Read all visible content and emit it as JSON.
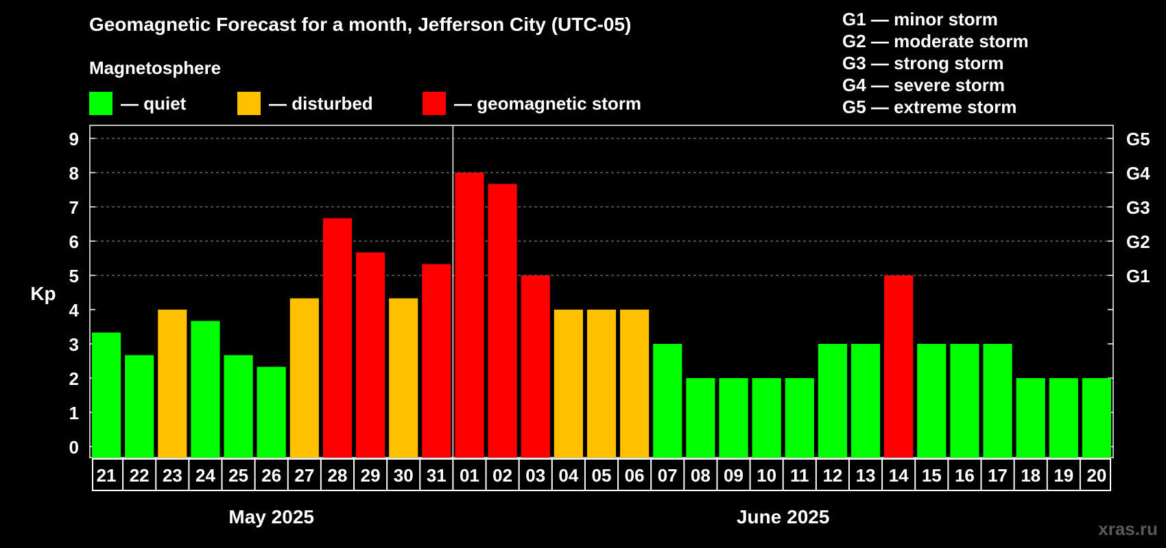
{
  "header": {
    "title": "Geomagnetic Forecast for a month, Jefferson City (UTC-05)",
    "magnetosphere_heading": "Magnetosphere"
  },
  "legend": [
    {
      "label": "— quiet",
      "color": "#00ff00"
    },
    {
      "label": "— disturbed",
      "color": "#ffc000"
    },
    {
      "label": "— geomagnetic storm",
      "color": "#ff0000"
    }
  ],
  "storm_scale": [
    "G1 — minor storm",
    "G2 — moderate storm",
    "G3 — strong storm",
    "G4 — severe storm",
    "G5 — extreme storm"
  ],
  "watermark": "xras.ru",
  "chart_data": {
    "type": "bar",
    "ylabel": "Kp",
    "ylim": [
      0,
      9
    ],
    "yticks": [
      "0",
      "1",
      "2",
      "3",
      "4",
      "5",
      "6",
      "7",
      "8",
      "9"
    ],
    "right_axis_labels": [
      {
        "value": 5,
        "label": "G1"
      },
      {
        "value": 6,
        "label": "G2"
      },
      {
        "value": 7,
        "label": "G3"
      },
      {
        "value": 8,
        "label": "G4"
      },
      {
        "value": 9,
        "label": "G5"
      }
    ],
    "grid": "dashed horizontal at Kp 5, 6, 7, 8, 9",
    "categories": [
      "21",
      "22",
      "23",
      "24",
      "25",
      "26",
      "27",
      "28",
      "29",
      "30",
      "31",
      "01",
      "02",
      "03",
      "04",
      "05",
      "06",
      "07",
      "08",
      "09",
      "10",
      "11",
      "12",
      "13",
      "14",
      "15",
      "16",
      "17",
      "18",
      "19",
      "20"
    ],
    "values": [
      3.33,
      2.67,
      4,
      3.67,
      2.67,
      2.33,
      4.33,
      6.67,
      5.67,
      4.33,
      5.33,
      8,
      7.67,
      5,
      4,
      4,
      4,
      3,
      2,
      2,
      2,
      2,
      3,
      3,
      5,
      3,
      3,
      3,
      2,
      2,
      2
    ],
    "levels": [
      "quiet",
      "quiet",
      "disturbed",
      "quiet",
      "quiet",
      "quiet",
      "disturbed",
      "storm",
      "storm",
      "disturbed",
      "storm",
      "storm",
      "storm",
      "storm",
      "disturbed",
      "disturbed",
      "disturbed",
      "quiet",
      "quiet",
      "quiet",
      "quiet",
      "quiet",
      "quiet",
      "quiet",
      "storm",
      "quiet",
      "quiet",
      "quiet",
      "quiet",
      "quiet",
      "quiet"
    ],
    "level_colors": {
      "quiet": "#00ff00",
      "disturbed": "#ffc000",
      "storm": "#ff0000"
    },
    "months": [
      {
        "label": "May 2025",
        "start_index": 0,
        "end_index": 10
      },
      {
        "label": "June 2025",
        "start_index": 11,
        "end_index": 30
      }
    ]
  }
}
